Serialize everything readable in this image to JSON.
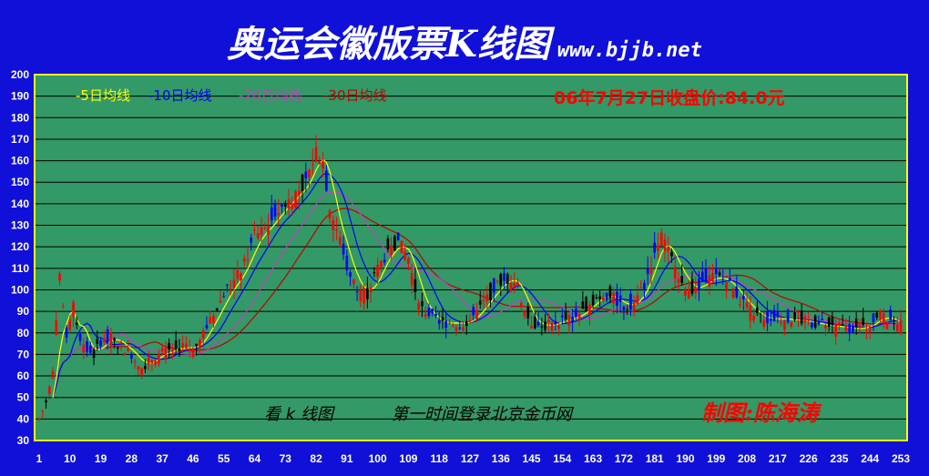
{
  "title": "奥运会徽版票K线图",
  "website": "www.bjjb.net",
  "price_note": "06年7月27日收盘价:84.0元",
  "footer_left": "看 k 线图",
  "footer_mid": "第一时间登录北京金币网",
  "footer_right": "制图:陈海涛",
  "colors": {
    "background": "#1010d8",
    "plot": "#339966",
    "up": "#ff0000",
    "down": "#000000",
    "down_alt": "#0000ff",
    "ma5": "#ffff00",
    "ma10": "#0000ff",
    "ma20": "#c040c0",
    "ma30": "#c00000",
    "axis": "#ffff00",
    "note": "#ff0000"
  },
  "chart_data": {
    "type": "candlestick",
    "ylim": [
      30,
      200
    ],
    "yticks": [
      30,
      40,
      50,
      60,
      70,
      80,
      90,
      100,
      110,
      120,
      130,
      140,
      150,
      160,
      170,
      180,
      190,
      200
    ],
    "xticks": [
      1,
      10,
      19,
      28,
      37,
      46,
      55,
      64,
      73,
      82,
      91,
      100,
      109,
      118,
      127,
      136,
      145,
      154,
      163,
      172,
      181,
      190,
      199,
      208,
      217,
      226,
      235,
      244,
      253
    ],
    "xlim": [
      1,
      253
    ],
    "grid": true,
    "legend_position": "top-left",
    "legend": [
      {
        "label": "-5日均线",
        "color": "#ffff00"
      },
      {
        "label": "-10日均线",
        "color": "#0000ff"
      },
      {
        "label": "-20日均线",
        "color": "#c040c0"
      },
      {
        "label": "-30日均线",
        "color": "#c00000"
      }
    ],
    "close_anchors": [
      [
        1,
        40
      ],
      [
        3,
        48
      ],
      [
        5,
        62
      ],
      [
        7,
        105
      ],
      [
        9,
        78
      ],
      [
        11,
        92
      ],
      [
        13,
        78
      ],
      [
        15,
        72
      ],
      [
        17,
        70
      ],
      [
        19,
        76
      ],
      [
        22,
        78
      ],
      [
        25,
        74
      ],
      [
        28,
        70
      ],
      [
        31,
        64
      ],
      [
        34,
        68
      ],
      [
        37,
        71
      ],
      [
        40,
        72
      ],
      [
        43,
        74
      ],
      [
        46,
        72
      ],
      [
        49,
        80
      ],
      [
        52,
        88
      ],
      [
        55,
        98
      ],
      [
        58,
        104
      ],
      [
        61,
        112
      ],
      [
        64,
        125
      ],
      [
        67,
        128
      ],
      [
        70,
        135
      ],
      [
        73,
        140
      ],
      [
        76,
        145
      ],
      [
        79,
        150
      ],
      [
        82,
        165
      ],
      [
        84,
        160
      ],
      [
        86,
        138
      ],
      [
        88,
        128
      ],
      [
        90,
        118
      ],
      [
        92,
        105
      ],
      [
        95,
        100
      ],
      [
        97,
        98
      ],
      [
        100,
        110
      ],
      [
        103,
        118
      ],
      [
        106,
        122
      ],
      [
        109,
        115
      ],
      [
        111,
        100
      ],
      [
        113,
        92
      ],
      [
        116,
        87
      ],
      [
        118,
        84
      ],
      [
        121,
        85
      ],
      [
        124,
        84
      ],
      [
        127,
        86
      ],
      [
        130,
        92
      ],
      [
        133,
        98
      ],
      [
        136,
        104
      ],
      [
        139,
        105
      ],
      [
        141,
        102
      ],
      [
        143,
        90
      ],
      [
        145,
        85
      ],
      [
        148,
        83
      ],
      [
        151,
        84
      ],
      [
        154,
        86
      ],
      [
        157,
        87
      ],
      [
        160,
        90
      ],
      [
        163,
        95
      ],
      [
        166,
        98
      ],
      [
        169,
        96
      ],
      [
        172,
        92
      ],
      [
        175,
        94
      ],
      [
        178,
        102
      ],
      [
        181,
        118
      ],
      [
        183,
        125
      ],
      [
        185,
        117
      ],
      [
        188,
        108
      ],
      [
        190,
        102
      ],
      [
        193,
        100
      ],
      [
        196,
        105
      ],
      [
        199,
        106
      ],
      [
        202,
        104
      ],
      [
        205,
        98
      ],
      [
        208,
        92
      ],
      [
        211,
        88
      ],
      [
        214,
        86
      ],
      [
        217,
        87
      ],
      [
        220,
        86
      ],
      [
        223,
        86
      ],
      [
        226,
        85
      ],
      [
        229,
        84
      ],
      [
        232,
        83
      ],
      [
        235,
        83
      ],
      [
        238,
        82
      ],
      [
        241,
        82
      ],
      [
        244,
        84
      ],
      [
        247,
        88
      ],
      [
        250,
        86
      ],
      [
        253,
        84
      ]
    ]
  }
}
